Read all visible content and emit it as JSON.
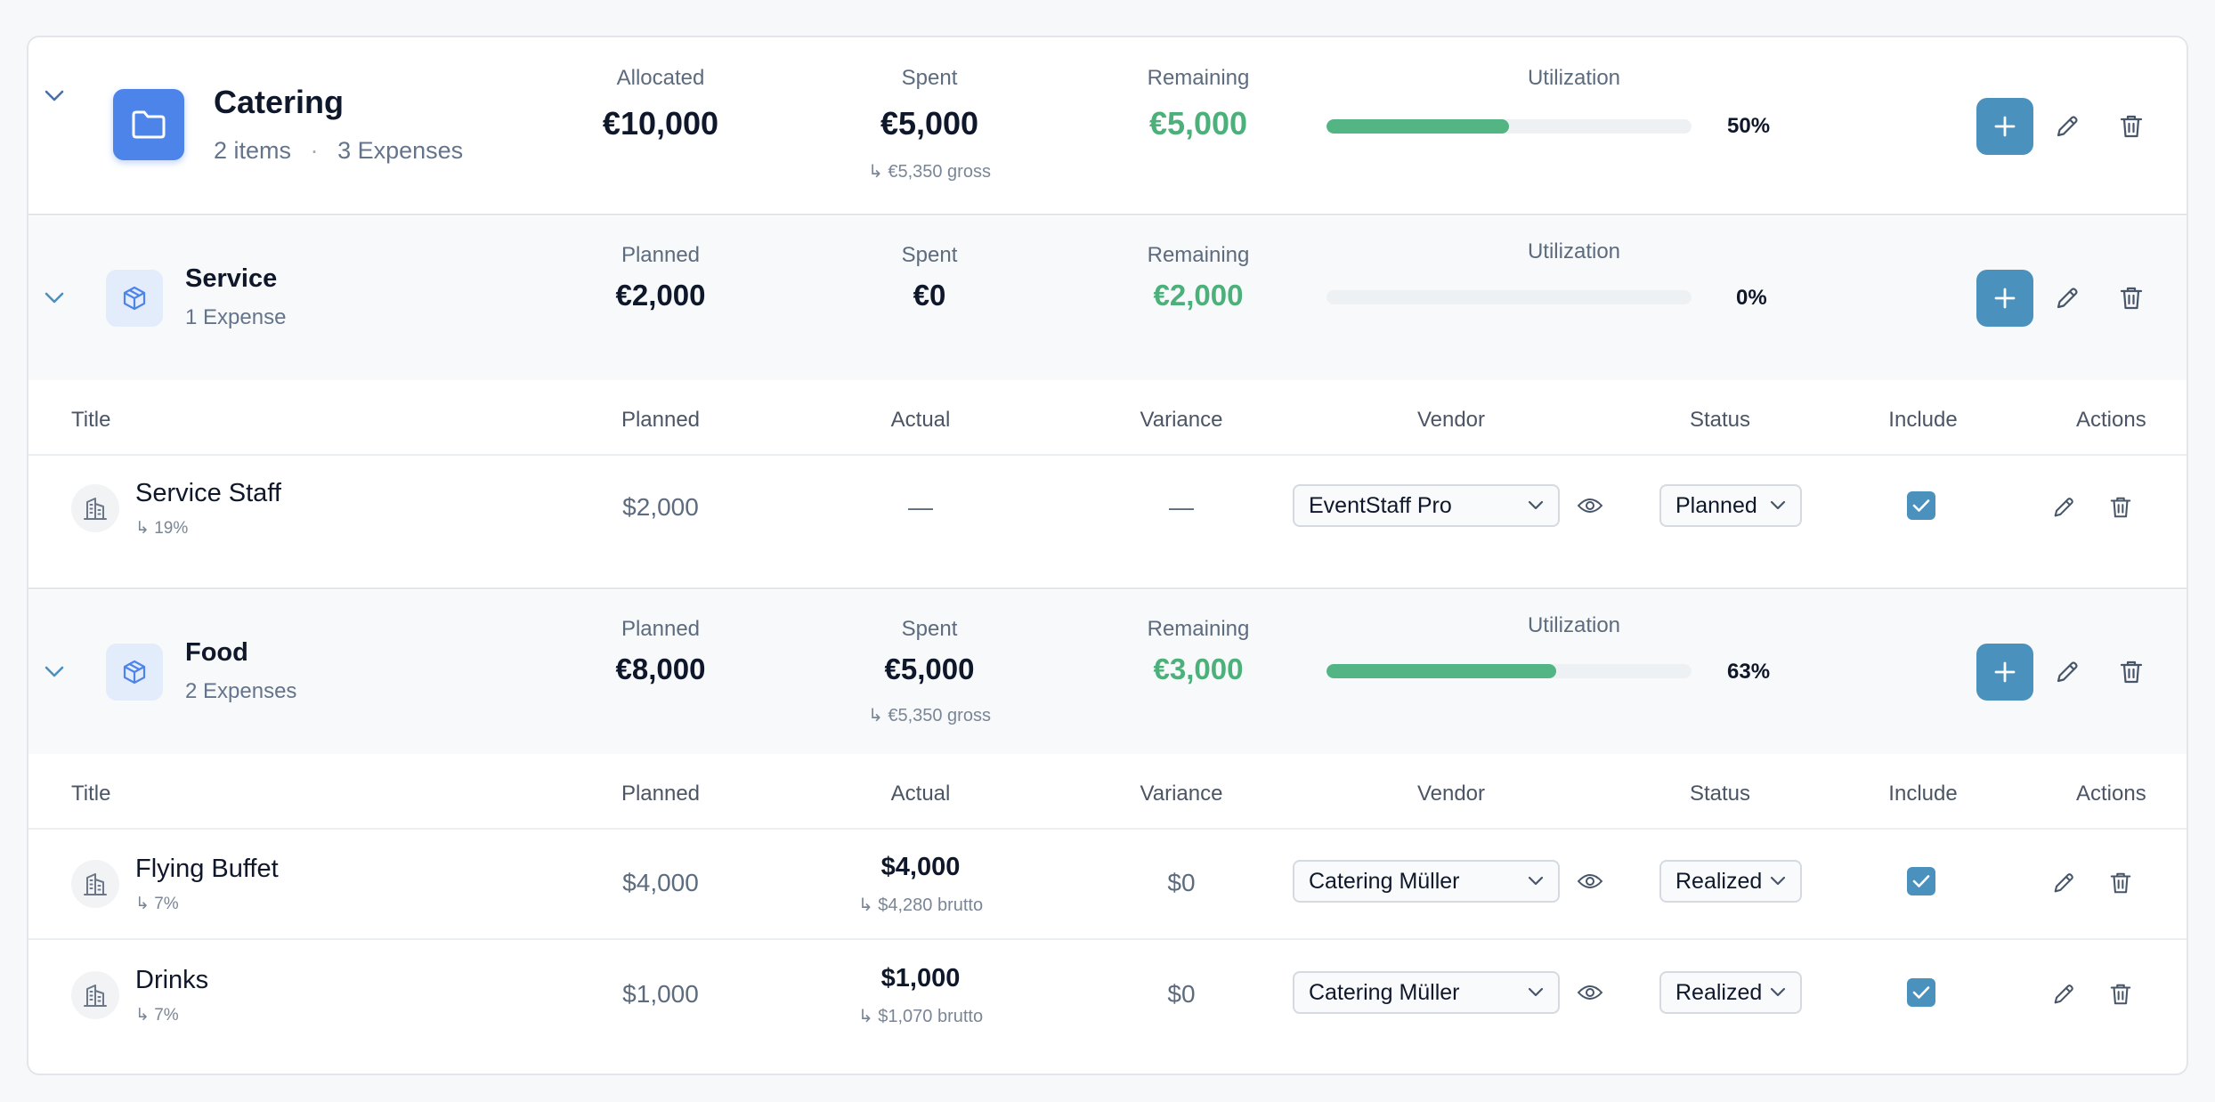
{
  "colors": {
    "accent": "#4a91bd",
    "folder": "#4c84ea",
    "positive": "#4cb07a",
    "bar": "#52b583"
  },
  "group": {
    "title": "Catering",
    "items_count": "2 items",
    "dot": "·",
    "expenses_count": "3 Expenses",
    "allocated_label": "Allocated",
    "allocated": "€10,000",
    "spent_label": "Spent",
    "spent": "€5,000",
    "spent_gross": "↳ €5,350 gross",
    "remaining_label": "Remaining",
    "remaining": "€5,000",
    "utilization_label": "Utilization",
    "utilization_fraction": 0.5,
    "utilization_text": "50%"
  },
  "subgroups": [
    {
      "title": "Service",
      "expenses_count": "1 Expense",
      "planned_label": "Planned",
      "planned": "€2,000",
      "spent_label": "Spent",
      "spent": "€0",
      "spent_gross": "",
      "remaining_label": "Remaining",
      "remaining": "€2,000",
      "utilization_label": "Utilization",
      "utilization_fraction": 0,
      "utilization_text": "0%"
    },
    {
      "title": "Food",
      "expenses_count": "2 Expenses",
      "planned_label": "Planned",
      "planned": "€8,000",
      "spent_label": "Spent",
      "spent": "€5,000",
      "spent_gross": "↳ €5,350 gross",
      "remaining_label": "Remaining",
      "remaining": "€3,000",
      "utilization_label": "Utilization",
      "utilization_fraction": 0.63,
      "utilization_text": "63%"
    }
  ],
  "table_headers": [
    "Title",
    "Planned",
    "Actual",
    "Variance",
    "Vendor",
    "Status",
    "Include",
    "Actions"
  ],
  "expenses": [
    {
      "title": "Service Staff",
      "share": "↳ 19%",
      "planned": "$2,000",
      "actual": "—",
      "actual_gross": "",
      "variance": "—",
      "vendor": "EventStaff Pro",
      "status": "Planned",
      "include": true
    },
    {
      "title": "Flying Buffet",
      "share": "↳ 7%",
      "planned": "$4,000",
      "actual": "$4,000",
      "actual_gross": "↳ $4,280 brutto",
      "variance": "$0",
      "vendor": "Catering Müller",
      "status": "Realized",
      "include": true
    },
    {
      "title": "Drinks",
      "share": "↳ 7%",
      "planned": "$1,000",
      "actual": "$1,000",
      "actual_gross": "↳ $1,070 brutto",
      "variance": "$0",
      "vendor": "Catering Müller",
      "status": "Realized",
      "include": true
    }
  ]
}
